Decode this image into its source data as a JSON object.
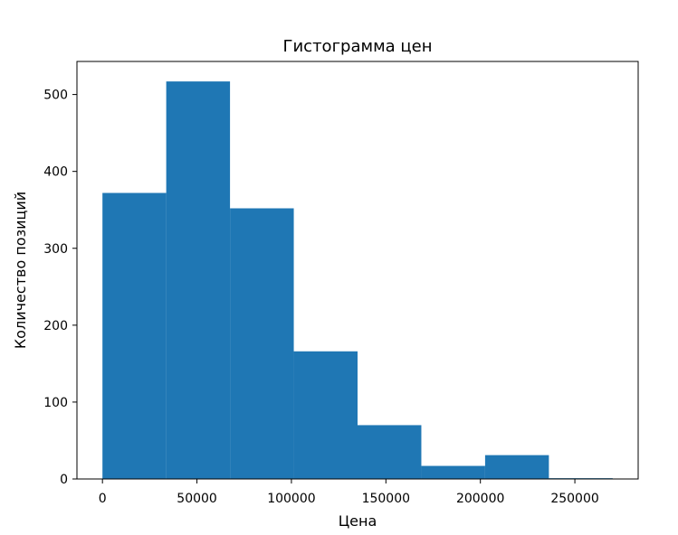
{
  "chart_data": {
    "type": "bar",
    "title": "Гистограмма цен",
    "xlabel": "Цена",
    "ylabel": "Количество позиций",
    "bin_edges": [
      0,
      33750,
      67500,
      101250,
      135000,
      168750,
      202500,
      236250,
      270000
    ],
    "values": [
      372,
      517,
      352,
      166,
      70,
      17,
      31,
      1
    ],
    "xlim": [
      -13500,
      283500
    ],
    "ylim": [
      0,
      543
    ],
    "xticks": [
      0,
      50000,
      100000,
      150000,
      200000,
      250000
    ],
    "xtick_labels": [
      "0",
      "50000",
      "100000",
      "150000",
      "200000",
      "250000"
    ],
    "yticks": [
      0,
      100,
      200,
      300,
      400,
      500
    ],
    "ytick_labels": [
      "0",
      "100",
      "200",
      "300",
      "400",
      "500"
    ],
    "color": "#1f77b4",
    "grid": false
  }
}
